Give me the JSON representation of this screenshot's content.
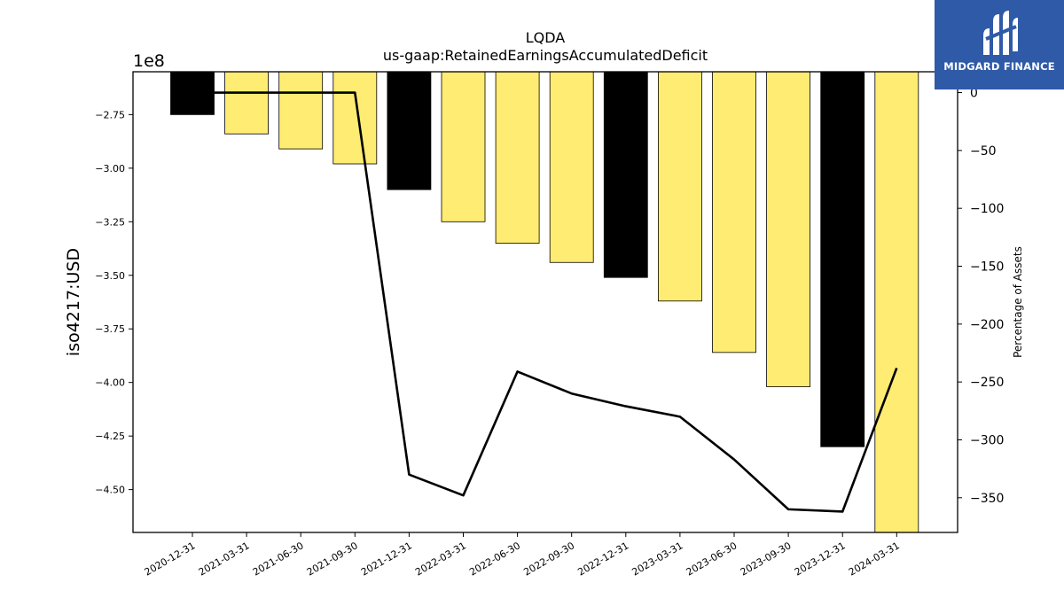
{
  "chart_data": {
    "type": "bar",
    "title": "LQDA",
    "subtitle": "us-gaap:RetainedEarningsAccumulatedDeficit",
    "ylabel": "iso4217:USD",
    "y_offset_label": "1e8",
    "y2label": "Percentage of Assets",
    "categories": [
      "2020-12-31",
      "2021-03-31",
      "2021-06-30",
      "2021-09-30",
      "2021-12-31",
      "2022-03-31",
      "2022-06-30",
      "2022-09-30",
      "2022-12-31",
      "2023-03-31",
      "2023-06-30",
      "2023-09-30",
      "2023-12-31",
      "2024-03-31"
    ],
    "series": [
      {
        "values": [
          -275000000.0,
          -284000000.0,
          -291000000.0,
          -298000000.0,
          -310000000.0,
          -325000000.0,
          -335000000.0,
          -344000000.0,
          -351000000.0,
          -362000000.0,
          -386000000.0,
          -402000000.0,
          -430000000.0,
          -472000000.0
        ],
        "colors": [
          "#000000",
          "#ffec73",
          "#ffec73",
          "#ffec73",
          "#000000",
          "#ffec73",
          "#ffec73",
          "#ffec73",
          "#000000",
          "#ffec73",
          "#ffec73",
          "#ffec73",
          "#000000",
          "#ffec73"
        ]
      },
      {
        "axis": "right",
        "type": "line",
        "values": [
          0,
          0,
          0,
          0,
          -330,
          -348,
          -241,
          -260,
          -271,
          -280,
          -317,
          -360,
          -362,
          -238
        ]
      }
    ],
    "ylim": [
      -470000000.0,
      -255000000.0
    ],
    "y2lim": [
      -380,
      18
    ],
    "yticks": [
      -275000000.0,
      -300000000.0,
      -325000000.0,
      -350000000.0,
      -375000000.0,
      -400000000.0,
      -425000000.0,
      -450000000.0
    ],
    "ytick_labels": [
      "−2.75",
      "−3.00",
      "−3.25",
      "−3.50",
      "−3.75",
      "−4.00",
      "−4.25",
      "−4.50"
    ],
    "y2ticks": [
      0,
      -50,
      -100,
      -150,
      -200,
      -250,
      -300,
      -350
    ],
    "y2tick_labels": [
      "0",
      "−50",
      "−100",
      "−150",
      "−200",
      "−250",
      "−300",
      "−350"
    ],
    "grid": false,
    "colors": {
      "bar_quarter": "#ffec73",
      "bar_year_end": "#000000",
      "line": "#000000"
    }
  },
  "logo": {
    "text": "MIDGARD FINANCE",
    "color": "#2f5aa8"
  }
}
